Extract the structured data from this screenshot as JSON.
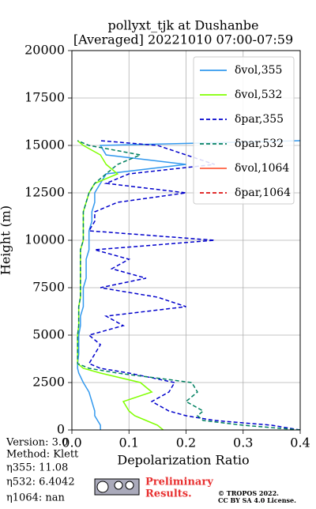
{
  "chart_data": {
    "type": "line",
    "title": "pollyxt_tjk at Dushanbe",
    "subtitle": "[Averaged] 20221010 07:00-07:59",
    "x_label": "Depolarization Ratio",
    "y_label": "Height (m)",
    "xlim": [
      0,
      0.4
    ],
    "xticks": [
      {
        "value": 0,
        "label": "0.0"
      },
      0.1,
      0.2,
      0.3,
      0.4
    ],
    "ylim": [
      0,
      20000
    ],
    "yticks": [
      0,
      2500,
      5000,
      7500,
      10000,
      12500,
      15000,
      17500,
      20000
    ],
    "grid": true,
    "legend": "upper right",
    "heights": [
      0,
      250,
      500,
      750,
      1000,
      1500,
      2000,
      2500,
      3000,
      3250,
      3500,
      4000,
      4500,
      5000,
      5500,
      6000,
      6500,
      7000,
      7500,
      8000,
      8500,
      9000,
      9500,
      10000,
      10500,
      11000,
      11500,
      12000,
      12500,
      13000,
      13500,
      14000,
      14500,
      15000,
      15250
    ],
    "series": [
      {
        "name": "δvol,355",
        "color": "#3399ee",
        "dash": false,
        "values": [
          0.05,
          0.05,
          0.045,
          0.04,
          0.04,
          0.035,
          0.03,
          0.02,
          0.012,
          0.01,
          0.01,
          0.012,
          0.012,
          0.012,
          0.015,
          0.015,
          0.02,
          0.02,
          0.02,
          0.025,
          0.025,
          0.025,
          0.03,
          0.03,
          0.03,
          0.035,
          0.035,
          0.04,
          0.04,
          0.05,
          0.06,
          0.2,
          0.06,
          0.05,
          0.4
        ]
      },
      {
        "name": "δvol,532",
        "color": "#80ff00",
        "dash": false,
        "values": [
          0.16,
          0.15,
          0.13,
          0.11,
          0.1,
          0.09,
          0.14,
          0.12,
          0.05,
          0.02,
          0.01,
          0.01,
          0.01,
          0.01,
          0.012,
          0.012,
          0.012,
          0.015,
          0.015,
          0.015,
          0.015,
          0.015,
          0.015,
          0.02,
          0.02,
          0.02,
          0.02,
          0.025,
          0.03,
          0.04,
          0.08,
          0.06,
          0.05,
          0.02,
          0.01
        ]
      },
      {
        "name": "δpar,355",
        "color": "#0000cc",
        "dash": true,
        "values": [
          0.4,
          0.35,
          0.25,
          0.2,
          0.17,
          0.14,
          0.17,
          0.18,
          0.1,
          0.05,
          0.03,
          0.04,
          0.05,
          0.03,
          0.09,
          0.06,
          0.2,
          0.15,
          0.05,
          0.13,
          0.07,
          0.1,
          0.04,
          0.25,
          0.03,
          0.04,
          0.04,
          0.08,
          0.2,
          0.06,
          0.1,
          0.25,
          0.2,
          0.15,
          0.05
        ]
      },
      {
        "name": "δpar,532",
        "color": "#008060",
        "dash": true,
        "values": [
          0.4,
          0.3,
          0.23,
          0.22,
          0.23,
          0.2,
          0.22,
          0.21,
          0.08,
          0.03,
          0.01,
          0.01,
          0.01,
          0.01,
          0.012,
          0.012,
          0.012,
          0.015,
          0.015,
          0.015,
          0.015,
          0.015,
          0.015,
          0.02,
          0.02,
          0.02,
          0.02,
          0.025,
          0.03,
          0.04,
          0.06,
          0.08,
          0.12,
          0.03,
          0.01
        ]
      },
      {
        "name": "δvol,1064",
        "color": "#ff6040",
        "dash": false,
        "values": [
          null,
          null,
          null,
          null,
          null,
          null,
          null,
          null,
          null,
          null,
          null,
          null,
          null,
          null,
          null,
          null,
          null,
          null,
          null,
          null,
          null,
          null,
          null,
          null,
          null,
          null,
          null,
          null,
          null,
          null,
          null,
          null,
          null,
          null,
          null
        ]
      },
      {
        "name": "δpar,1064",
        "color": "#dd1111",
        "dash": true,
        "values": [
          null,
          null,
          null,
          null,
          null,
          null,
          null,
          null,
          null,
          null,
          null,
          null,
          null,
          null,
          null,
          null,
          null,
          null,
          null,
          null,
          null,
          null,
          null,
          null,
          null,
          null,
          null,
          null,
          null,
          null,
          null,
          null,
          null,
          null,
          null
        ]
      }
    ]
  },
  "info": {
    "version": "Version: 3.0",
    "method": "Method: Klett",
    "eta355": "η355:  11.08",
    "eta532": "η532: 6.4042",
    "eta1064": "η1064:    nan"
  },
  "footer": {
    "preliminary": "Preliminary",
    "results": "Results.",
    "copyright": "© TROPOS 2022.",
    "license": "CC BY SA 4.0 License."
  }
}
